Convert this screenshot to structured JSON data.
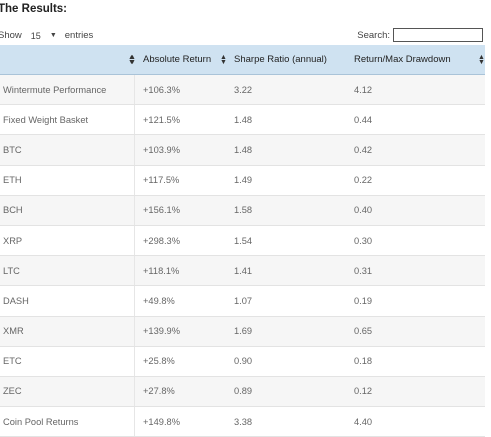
{
  "heading": "The Results:",
  "length_control": {
    "prefix": "Show",
    "value": "15",
    "suffix": "entries"
  },
  "search": {
    "label": "Search:",
    "value": ""
  },
  "table": {
    "headers": [
      "",
      "Absolute Return",
      "Sharpe Ratio (annual)",
      "Return/Max Drawdown"
    ],
    "rows": [
      [
        "Wintermute Performance",
        "+106.3%",
        "3.22",
        "4.12"
      ],
      [
        "Fixed Weight Basket",
        "+121.5%",
        "1.48",
        "0.44"
      ],
      [
        "BTC",
        "+103.9%",
        "1.48",
        "0.42"
      ],
      [
        "ETH",
        "+117.5%",
        "1.49",
        "0.22"
      ],
      [
        "BCH",
        "+156.1%",
        "1.58",
        "0.40"
      ],
      [
        "XRP",
        "+298.3%",
        "1.54",
        "0.30"
      ],
      [
        "LTC",
        "+118.1%",
        "1.41",
        "0.31"
      ],
      [
        "DASH",
        "+49.8%",
        "1.07",
        "0.19"
      ],
      [
        "XMR",
        "+139.9%",
        "1.69",
        "0.65"
      ],
      [
        "ETC",
        "+25.8%",
        "0.90",
        "0.18"
      ],
      [
        "ZEC",
        "+27.8%",
        "0.89",
        "0.12"
      ],
      [
        "Coin Pool Returns",
        "+149.8%",
        "3.38",
        "4.40"
      ]
    ]
  }
}
